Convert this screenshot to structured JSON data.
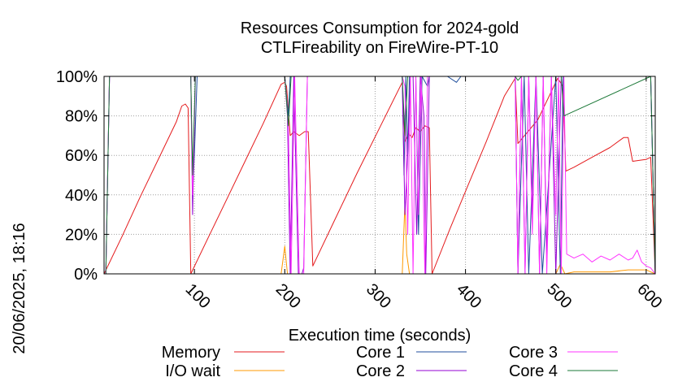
{
  "chart_data": {
    "type": "line",
    "title_lines": [
      "Resources Consumption for 2024-gold",
      "CTLFireability on FireWire-PT-10"
    ],
    "xlabel": "Execution time (seconds)",
    "ylabel": "",
    "side_label": "20/06/2025, 18:16",
    "xlim": [
      0,
      610
    ],
    "ylim": [
      0,
      100
    ],
    "x_ticks": [
      100,
      200,
      300,
      400,
      500,
      600
    ],
    "y_ticks": [
      0,
      20,
      40,
      60,
      80,
      100
    ],
    "y_tick_labels": [
      "0%",
      "20%",
      "40%",
      "60%",
      "80%",
      "100%"
    ],
    "grid": true,
    "legend_position": "bottom",
    "series": [
      {
        "name": "Memory",
        "color": "#e41a1c",
        "x": [
          0,
          20,
          40,
          60,
          80,
          86,
          90,
          93,
          96,
          116,
          136,
          156,
          176,
          196,
          200,
          202,
          206,
          210,
          216,
          222,
          226,
          231,
          255,
          280,
          305,
          330,
          333,
          337,
          341,
          345,
          350,
          355,
          360,
          363,
          383,
          403,
          423,
          443,
          455,
          458,
          480,
          502,
          508,
          511,
          520,
          540,
          560,
          575,
          580,
          585,
          600,
          605,
          610
        ],
        "y": [
          0,
          19,
          39,
          58,
          77,
          85,
          86,
          84,
          0,
          19,
          38,
          57,
          76,
          96,
          97,
          95,
          70,
          72,
          70,
          72,
          72,
          4,
          27,
          51,
          74,
          97,
          67,
          71,
          69,
          74,
          72,
          75,
          74,
          0,
          23,
          45,
          67,
          90,
          99,
          66,
          78,
          99,
          95,
          52,
          54,
          59,
          64,
          69,
          69,
          57,
          58,
          59,
          0
        ]
      },
      {
        "name": "I/O wait",
        "color": "#ff9900",
        "x": [
          0,
          196,
          200,
          203,
          206,
          330,
          333,
          335,
          338,
          500,
          505,
          510,
          520,
          540,
          560,
          580,
          600,
          605,
          610
        ],
        "y": [
          0,
          0,
          14,
          0,
          0,
          0,
          36,
          10,
          0,
          0,
          5,
          0,
          1,
          1,
          1,
          2,
          2,
          1,
          0
        ]
      },
      {
        "name": "Core 1",
        "color": "#1f4e9c",
        "x": [
          0,
          2,
          6,
          96,
          98,
          100,
          103,
          200,
          204,
          206,
          330,
          332,
          334,
          336,
          338,
          345,
          348,
          352,
          358,
          360,
          363,
          380,
          390,
          395,
          455,
          458,
          465,
          470,
          478,
          485,
          500,
          505,
          508,
          511,
          605,
          610
        ],
        "y": [
          0,
          0,
          100,
          100,
          40,
          60,
          100,
          100,
          80,
          100,
          100,
          50,
          100,
          60,
          100,
          100,
          20,
          100,
          95,
          100,
          100,
          100,
          97,
          100,
          100,
          0,
          100,
          0,
          100,
          0,
          100,
          0,
          100,
          100,
          100,
          0
        ]
      },
      {
        "name": "Core 2",
        "color": "#9400d3",
        "x": [
          0,
          2,
          6,
          96,
          98,
          101,
          200,
          203,
          206,
          210,
          215,
          219,
          221,
          225,
          330,
          333,
          336,
          339,
          342,
          346,
          350,
          354,
          356,
          360,
          363,
          455,
          458,
          462,
          466,
          470,
          474,
          478,
          482,
          486,
          490,
          495,
          500,
          506,
          509,
          605,
          610
        ],
        "y": [
          0,
          0,
          100,
          100,
          30,
          100,
          100,
          80,
          0,
          100,
          0,
          0,
          3,
          100,
          100,
          30,
          60,
          100,
          100,
          20,
          100,
          80,
          0,
          100,
          100,
          100,
          0,
          100,
          0,
          100,
          30,
          100,
          0,
          100,
          10,
          100,
          0,
          100,
          100,
          100,
          0
        ]
      },
      {
        "name": "Core 3",
        "color": "#ff33ff",
        "x": [
          0,
          2,
          6,
          96,
          98,
          101,
          200,
          204,
          207,
          211,
          216,
          221,
          225,
          330,
          333,
          336,
          339,
          342,
          345,
          348,
          351,
          355,
          358,
          361,
          363,
          455,
          458,
          462,
          466,
          470,
          474,
          478,
          482,
          486,
          490,
          495,
          500,
          503,
          506,
          509,
          512,
          520,
          530,
          540,
          550,
          560,
          570,
          580,
          585,
          590,
          595,
          600,
          605,
          610
        ],
        "y": [
          0,
          0,
          100,
          100,
          40,
          100,
          100,
          75,
          0,
          100,
          0,
          0,
          100,
          100,
          95,
          20,
          100,
          0,
          100,
          30,
          100,
          0,
          100,
          100,
          100,
          100,
          0,
          100,
          0,
          100,
          20,
          100,
          0,
          100,
          0,
          100,
          30,
          100,
          0,
          100,
          10,
          8,
          10,
          6,
          9,
          7,
          10,
          7,
          8,
          12,
          6,
          4,
          3,
          0
        ]
      },
      {
        "name": "Core 4",
        "color": "#1b7837",
        "x": [
          0,
          2,
          6,
          96,
          98,
          101,
          200,
          204,
          207,
          330,
          333,
          336,
          360,
          363,
          455,
          458,
          462,
          506,
          509,
          605,
          610
        ],
        "y": [
          0,
          0,
          100,
          100,
          50,
          100,
          100,
          75,
          100,
          100,
          70,
          100,
          100,
          100,
          100,
          98,
          100,
          100,
          80,
          100,
          0
        ]
      }
    ]
  }
}
